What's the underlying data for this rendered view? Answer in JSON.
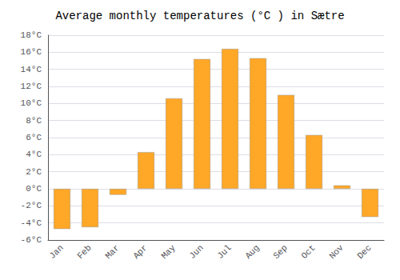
{
  "chart_data": {
    "type": "bar",
    "title": "Average monthly temperatures (°C ) in Sætre",
    "categories": [
      "Jan",
      "Feb",
      "Mar",
      "Apr",
      "May",
      "Jun",
      "Jul",
      "Aug",
      "Sep",
      "Oct",
      "Nov",
      "Dec"
    ],
    "values": [
      -4.7,
      -4.5,
      -0.7,
      4.3,
      10.6,
      15.2,
      16.4,
      15.3,
      11.0,
      6.3,
      0.4,
      -3.3
    ],
    "color": "#FFA726",
    "ylim": [
      -6,
      18
    ],
    "yticks": [
      {
        "value": -6,
        "label": "-6°C"
      },
      {
        "value": -4,
        "label": "-4°C"
      },
      {
        "value": -2,
        "label": "-2°C"
      },
      {
        "value": 0,
        "label": "0°C"
      },
      {
        "value": 2,
        "label": "2°C"
      },
      {
        "value": 4,
        "label": "4°C"
      },
      {
        "value": 6,
        "label": "6°C"
      },
      {
        "value": 8,
        "label": "8°C"
      },
      {
        "value": 10,
        "label": "10°C"
      },
      {
        "value": 12,
        "label": "12°C"
      },
      {
        "value": 14,
        "label": "14°C"
      },
      {
        "value": 16,
        "label": "16°C"
      },
      {
        "value": 18,
        "label": "18°C"
      }
    ],
    "grid": true
  }
}
